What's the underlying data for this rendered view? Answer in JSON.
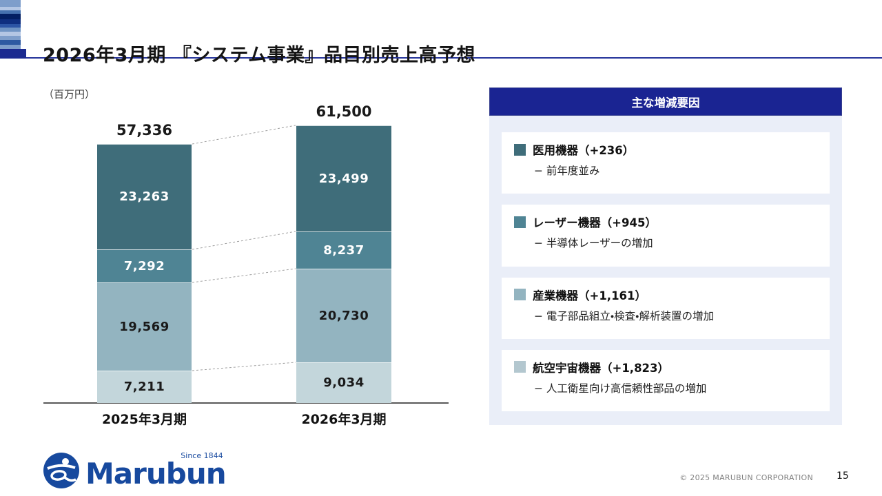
{
  "header": {
    "title": "2026年3月期 『システム事業』品目別売上高予想"
  },
  "chart_data": {
    "type": "bar",
    "stacked": true,
    "unit_label": "（百万円）",
    "categories": [
      "2025年3月期",
      "2026年3月期"
    ],
    "totals": [
      57336,
      61500
    ],
    "totals_labels": [
      "57,336",
      "61,500"
    ],
    "series": [
      {
        "name": "航空宇宙機器",
        "color": "#c3d6db",
        "label_color": "#1a1a1a",
        "values": [
          7211,
          9034
        ]
      },
      {
        "name": "産業機器",
        "color": "#93b4c0",
        "label_color": "#1a1a1a",
        "values": [
          19569,
          20730
        ]
      },
      {
        "name": "レーザー機器",
        "color": "#4f8494",
        "label_color": "#ffffff",
        "values": [
          7292,
          8237
        ]
      },
      {
        "name": "医用機器",
        "color": "#3f6d7a",
        "label_color": "#ffffff",
        "values": [
          23263,
          23499
        ]
      }
    ],
    "ylim": [
      0,
      61500
    ],
    "grid": false,
    "connector_lines": "dashed lines link matching segment boundaries between the two bars"
  },
  "factors": {
    "title": "主な増減要因",
    "items": [
      {
        "label": "医用機器（+236）",
        "note": "− 前年度並み",
        "color": "#3f6d7a"
      },
      {
        "label": "レーザー機器（+945）",
        "note": "− 半導体レーザーの増加",
        "color": "#4f8494"
      },
      {
        "label": "産業機器（+1,161）",
        "note": "− 電子部品組立・検査・解析装置の増加",
        "color": "#93b4c0"
      },
      {
        "label": "航空宇宙機器（+1,823）",
        "note": "− 人工衛星向け高信頼性部品の増加",
        "color": "#b3c7cf"
      }
    ]
  },
  "footer": {
    "logo_text": "Marubun",
    "logo_tagline": "Since 1844",
    "copyright": "© 2025 MARUBUN CORPORATION",
    "page_number": "15"
  },
  "colors": {
    "accent_navy": "#1a2492",
    "title_rule_navy": "#25339b",
    "brand_blue": "#17499e"
  }
}
